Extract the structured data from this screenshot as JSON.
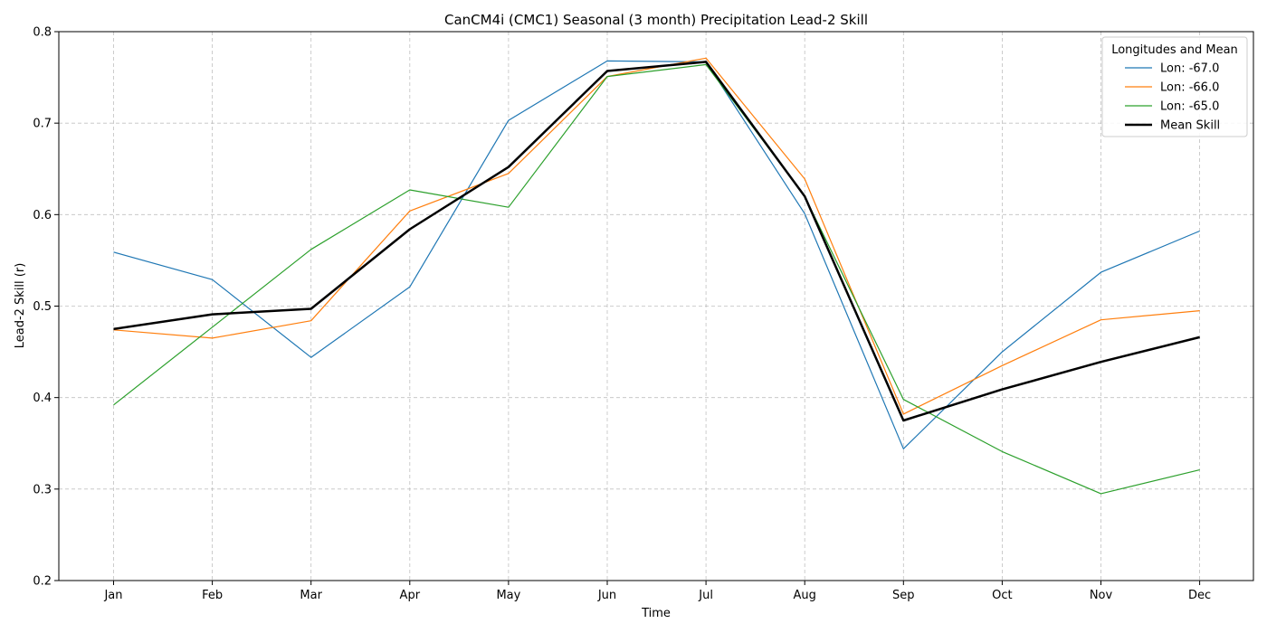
{
  "chart_data": {
    "type": "line",
    "title": "CanCM4i (CMC1) Seasonal (3 month) Precipitation Lead-2 Skill",
    "xlabel": "Time",
    "ylabel": "Lead-2 Skill (r)",
    "ylim": [
      0.2,
      0.8
    ],
    "yticks": [
      0.2,
      0.3,
      0.4,
      0.5,
      0.6,
      0.7,
      0.8
    ],
    "ytick_labels": [
      "0.2",
      "0.3",
      "0.4",
      "0.5",
      "0.6",
      "0.7",
      "0.8"
    ],
    "grid": true,
    "legend": {
      "title": "Longitudes and Mean",
      "placement": "top-right"
    },
    "categories": [
      "Jan",
      "Feb",
      "Mar",
      "Apr",
      "May",
      "Jun",
      "Jul",
      "Aug",
      "Sep",
      "Oct",
      "Nov",
      "Dec"
    ],
    "series": [
      {
        "name": "Lon: -67.0",
        "color": "#1f77b4",
        "values": [
          0.559,
          0.529,
          0.444,
          0.521,
          0.703,
          0.768,
          0.767,
          0.601,
          0.344,
          0.45,
          0.537,
          0.582
        ]
      },
      {
        "name": "Lon: -66.0",
        "color": "#ff7f0e",
        "values": [
          0.474,
          0.465,
          0.484,
          0.604,
          0.645,
          0.751,
          0.771,
          0.639,
          0.382,
          0.435,
          0.485,
          0.495
        ]
      },
      {
        "name": "Lon: -65.0",
        "color": "#2ca02c",
        "values": [
          0.392,
          0.477,
          0.562,
          0.627,
          0.608,
          0.751,
          0.764,
          0.62,
          0.398,
          0.341,
          0.295,
          0.321
        ]
      },
      {
        "name": "Mean Skill",
        "color": "#000000",
        "bold": true,
        "values": [
          0.475,
          0.491,
          0.497,
          0.584,
          0.652,
          0.757,
          0.767,
          0.62,
          0.375,
          0.409,
          0.439,
          0.466
        ]
      }
    ]
  }
}
